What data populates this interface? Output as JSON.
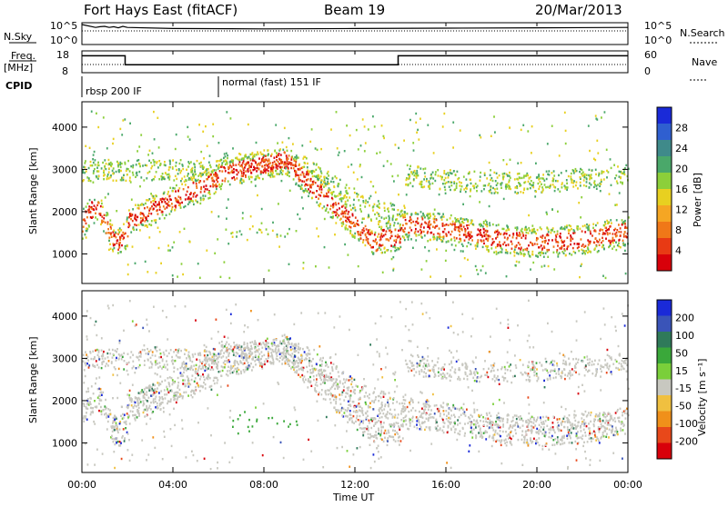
{
  "header": {
    "station": "Fort Hays East (fitACF)",
    "beam": "Beam 19",
    "date": "20/Mar/2013"
  },
  "top_panels": {
    "nsky_label": "N.Sky",
    "nsky_ticks": [
      "10^5",
      "10^0"
    ],
    "nsearch_label": "N.Search",
    "nsearch_ticks": [
      "10^5",
      "10^0"
    ],
    "freq_label_1": "Freq.",
    "freq_label_2": "[MHz]",
    "freq_ticks": [
      "18",
      "8"
    ],
    "nave_label": "Nave",
    "nave_ticks": [
      "60",
      "0"
    ],
    "cpid_label": "CPID",
    "cpid_entries": [
      {
        "text": "rbsp 200 IF",
        "start_hour": 0
      },
      {
        "text": "normal (fast) 151 IF",
        "start_hour": 6
      }
    ]
  },
  "time_axis": {
    "label": "Time UT",
    "ticks": [
      "00:00",
      "04:00",
      "08:00",
      "12:00",
      "16:00",
      "20:00",
      "00:00"
    ],
    "range_hours": [
      0,
      24
    ]
  },
  "colors": {
    "power": [
      "#1a2ad8",
      "#2f5fd0",
      "#3f8a8a",
      "#4aa86a",
      "#8ccf3a",
      "#e8d020",
      "#f5a623",
      "#f07818",
      "#e83a14",
      "#d8000a"
    ],
    "velocity": [
      "#1a2ad8",
      "#3a54b8",
      "#2f7a5a",
      "#3aa83a",
      "#7acf3a",
      "#c8c8c0",
      "#f0c040",
      "#f0901a",
      "#e8481a",
      "#d8000a"
    ]
  },
  "chart_data": [
    {
      "type": "line",
      "title": "Fort Hays East (fitACF)",
      "xlabel": "",
      "ylabel": "N.Sky",
      "x_range": [
        0,
        24
      ],
      "series": [
        {
          "name": "N.Sky",
          "x": [
            0,
            0.6,
            0.8,
            1.0,
            1.2,
            1.4,
            1.6,
            1.8,
            2.0,
            4,
            8,
            12,
            16,
            20,
            24
          ],
          "values": [
            5,
            4.2,
            4.4,
            4.5,
            4.2,
            4.4,
            4.1,
            4.5,
            4.2,
            3.9,
            3.8,
            3.9,
            4.0,
            4.1,
            4.2
          ]
        }
      ]
    },
    {
      "type": "line",
      "xlabel": "",
      "ylabel": "Freq. [MHz]",
      "x_range": [
        0,
        24
      ],
      "ylim": [
        8,
        18
      ],
      "series": [
        {
          "name": "Freq.",
          "x": [
            0,
            1.9,
            1.9,
            13.9,
            13.9,
            24
          ],
          "values": [
            16,
            16,
            11.5,
            11.5,
            16,
            16
          ]
        }
      ]
    },
    {
      "type": "heatmap",
      "xlabel": "Time UT",
      "ylabel": "Slant Range [km]",
      "ylim": [
        300,
        4600
      ],
      "yticks": [
        "1000",
        "2000",
        "3000",
        "4000"
      ],
      "colorbar_label": "Power [dB]",
      "colorbar_ticks": [
        "4",
        "8",
        "12",
        "16",
        "20",
        "24",
        "28"
      ]
    },
    {
      "type": "heatmap",
      "xlabel": "Time UT",
      "ylabel": "Slant Range [km]",
      "ylim": [
        300,
        4600
      ],
      "yticks": [
        "1000",
        "2000",
        "3000",
        "4000"
      ],
      "colorbar_label": "Velocity [m s⁻¹]",
      "colorbar_ticks": [
        "200",
        "100",
        "50",
        "15",
        "-15",
        "-50",
        "-100",
        "-200"
      ]
    }
  ]
}
